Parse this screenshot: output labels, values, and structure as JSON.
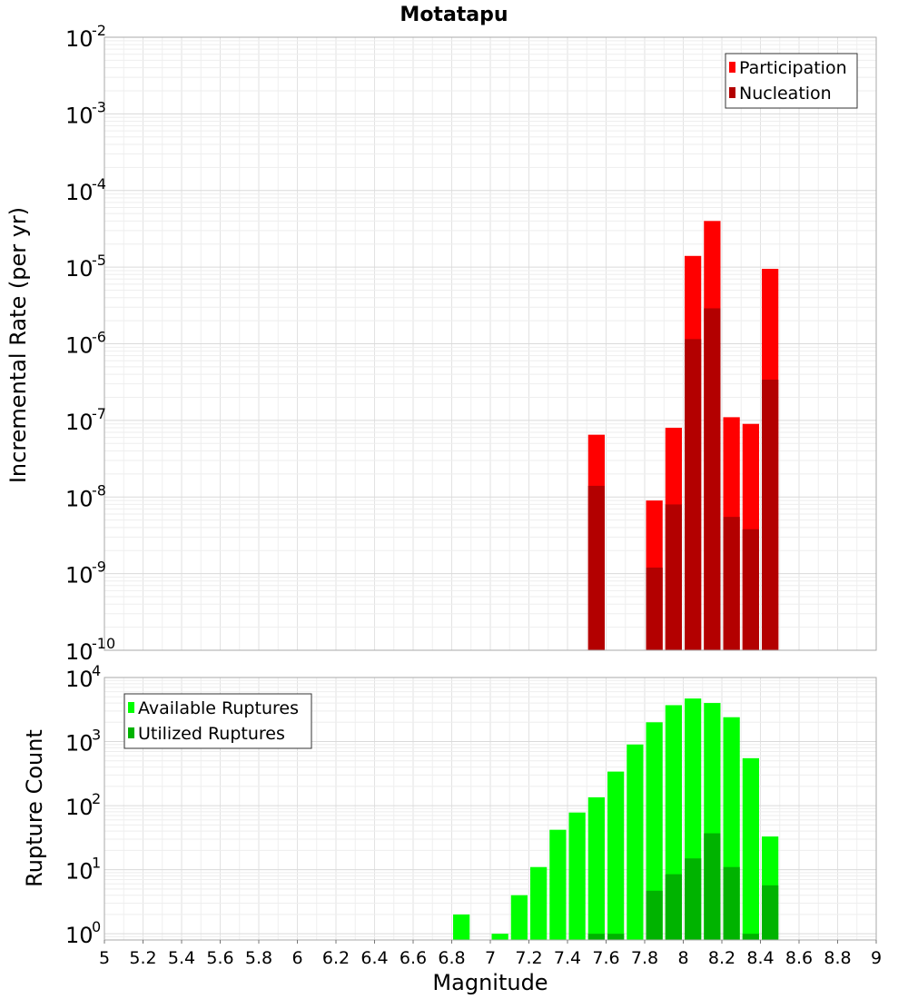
{
  "chart_data": [
    {
      "type": "bar",
      "title": "Motatapu",
      "ylabel": "Incremental Rate (per yr)",
      "xlabel": "",
      "yscale": "log",
      "ylim": [
        1e-10,
        0.01
      ],
      "xlim": [
        5,
        9
      ],
      "bar_width": 0.1,
      "grid": true,
      "legend_position": "top-right",
      "x": [
        7.55,
        7.85,
        7.95,
        8.05,
        8.15,
        8.25,
        8.35,
        8.45
      ],
      "series": [
        {
          "name": "Participation",
          "color": "#ff0000",
          "values": [
            6.5e-08,
            9e-09,
            8e-08,
            1.4e-05,
            4e-05,
            1.1e-07,
            9e-08,
            9.5e-06
          ]
        },
        {
          "name": "Nucleation",
          "color": "#b30000",
          "values": [
            1.4e-08,
            1.2e-09,
            8e-09,
            1.15e-06,
            2.9e-06,
            5.5e-09,
            3.8e-09,
            3.4e-07
          ]
        }
      ]
    },
    {
      "type": "bar",
      "ylabel": "Rupture Count",
      "xlabel": "Magnitude",
      "yscale": "log",
      "ylim": [
        0.8,
        10000
      ],
      "xlim": [
        5,
        9
      ],
      "bar_width": 0.1,
      "grid": true,
      "legend_position": "top-left",
      "xticks": [
        "5",
        "5.2",
        "5.4",
        "5.6",
        "5.8",
        "6",
        "6.2",
        "6.4",
        "6.6",
        "6.8",
        "7",
        "7.2",
        "7.4",
        "7.6",
        "7.8",
        "8",
        "8.2",
        "8.4",
        "8.6",
        "8.8",
        "9"
      ],
      "x": [
        6.85,
        7.05,
        7.15,
        7.25,
        7.35,
        7.45,
        7.55,
        7.65,
        7.75,
        7.85,
        7.95,
        8.05,
        8.15,
        8.25,
        8.35,
        8.45
      ],
      "series": [
        {
          "name": "Available Ruptures",
          "color": "#00ff00",
          "values": [
            2,
            1,
            4,
            11,
            42,
            78,
            135,
            340,
            900,
            2000,
            3700,
            4700,
            4000,
            2400,
            550,
            33
          ]
        },
        {
          "name": "Utilized Ruptures",
          "color": "#00b300",
          "values": [
            null,
            null,
            null,
            null,
            null,
            null,
            1,
            1,
            null,
            4.7,
            8.5,
            15,
            37,
            11,
            1,
            5.7
          ]
        }
      ]
    }
  ]
}
